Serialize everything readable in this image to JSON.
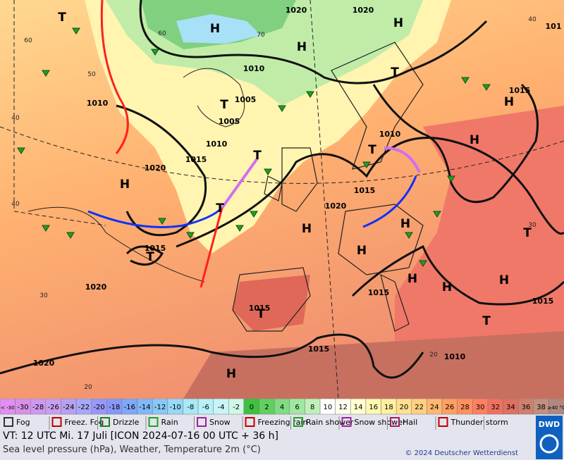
{
  "map": {
    "pressure_labels": [
      "1020",
      "1020",
      "1010",
      "1005",
      "1005",
      "1010",
      "1015",
      "1020",
      "1010",
      "1015",
      "1010",
      "1015",
      "1020",
      "1015",
      "1020",
      "1015",
      "1015",
      "1015",
      "1010",
      "1015",
      "1020",
      "101"
    ],
    "pressure_centers": [
      "T",
      "H",
      "H",
      "H",
      "T",
      "T",
      "H",
      "T",
      "H",
      "H",
      "T",
      "H",
      "H",
      "H",
      "T",
      "H",
      "H",
      "H",
      "T",
      "H",
      "T",
      "T",
      "T"
    ],
    "grid_labels": [
      "60",
      "50",
      "40",
      "30",
      "20",
      "40",
      "30",
      "20",
      "60",
      "70",
      "40"
    ]
  },
  "legend": {
    "scale_labels": [
      "< -30",
      "-30",
      "-28",
      "-26",
      "-24",
      "-22",
      "-20",
      "-18",
      "-16",
      "-14",
      "-12",
      "-10",
      "-8",
      "-6",
      "-4",
      "-2",
      "0",
      "2",
      "4",
      "6",
      "8",
      "10",
      "12",
      "14",
      "16",
      "18",
      "20",
      "22",
      "24",
      "26",
      "28",
      "30",
      "32",
      "34",
      "36",
      "38",
      "≥40 °C"
    ],
    "scale_colors": [
      "#e090f0",
      "#d890e8",
      "#d098f0",
      "#c8a0f0",
      "#b8a0f0",
      "#a8a8f8",
      "#9898f8",
      "#8898f8",
      "#80a8f8",
      "#80b8f8",
      "#88c8f8",
      "#98d8f8",
      "#a8e8f8",
      "#b8f0f8",
      "#c8f4f8",
      "#d0f8e8",
      "#40c040",
      "#60d060",
      "#80dc80",
      "#a0e8a0",
      "#c0f0b8",
      "#ffffff",
      "#fffff0",
      "#ffffd0",
      "#fff8b0",
      "#fff0a0",
      "#ffe090",
      "#ffd080",
      "#ffb870",
      "#ffa060",
      "#ff9060",
      "#ff8060",
      "#f07060",
      "#e07060",
      "#d08070",
      "#c09080",
      "#b08880"
    ],
    "weather": [
      "Fog",
      "Freez. Fog",
      "Drizzle",
      "Rain",
      "Snow",
      "Freezing rain",
      "Rain shower",
      "Snow shower",
      "Hail",
      "Thunder storm"
    ]
  },
  "footer": {
    "valid_time": "VT: 12 UTC Mi.   17 Juli [ICON 2024-07-16  00 UTC + 36 h]",
    "description": "Sea level pressure (hPa), Weather, Temperature 2m (°C)",
    "copyright": "© 2024 Deutscher Wetterdienst",
    "logo": "DWD"
  }
}
